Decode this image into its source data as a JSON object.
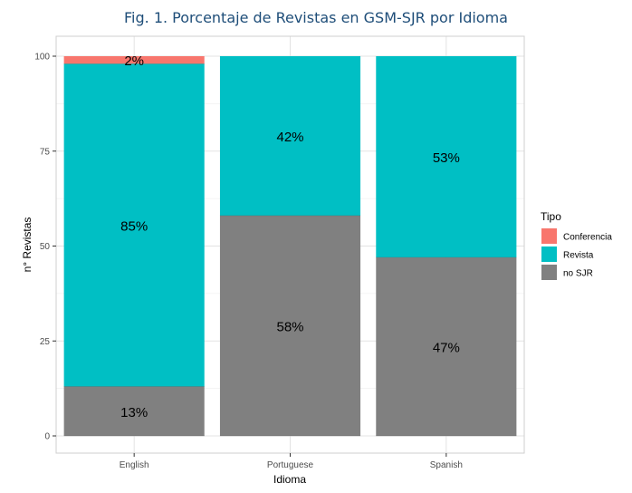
{
  "chart_data": {
    "type": "bar",
    "stacked": true,
    "title": "Fig.  1. Porcentaje de Revistas en GSM-SJR por Idioma",
    "xlabel": "Idioma",
    "ylabel": "n° Revistas",
    "ylim": [
      0,
      100
    ],
    "yticks": [
      "0",
      "25",
      "50",
      "75",
      "100"
    ],
    "categories": [
      "English",
      "Portuguese",
      "Spanish"
    ],
    "series": [
      {
        "name": "no SJR",
        "color": "#808080",
        "values": [
          13,
          58,
          47
        ],
        "labels": [
          "13%",
          "58%",
          "47%"
        ]
      },
      {
        "name": "Revista",
        "color": "#00bfc4",
        "values": [
          85,
          42,
          53
        ],
        "labels": [
          "85%",
          "42%",
          "53%"
        ]
      },
      {
        "name": "Conferencia",
        "color": "#f8766d",
        "values": [
          2,
          0,
          0
        ],
        "labels": [
          "2%",
          "",
          ""
        ]
      }
    ],
    "legend": {
      "title": "Tipo",
      "placement": "right",
      "entries": [
        "Conferencia",
        "Revista",
        "no SJR"
      ]
    },
    "grid": true
  }
}
